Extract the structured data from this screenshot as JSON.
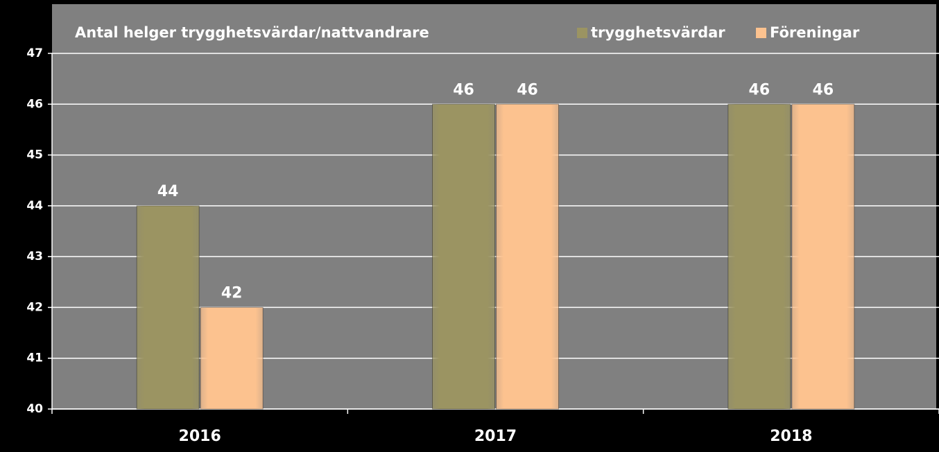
{
  "chart_data": {
    "type": "bar",
    "title": "Antal helger trygghetsvärdar/nattvandrare",
    "categories": [
      "2016",
      "2017",
      "2018"
    ],
    "series": [
      {
        "name": "trygghetsvärdar",
        "color": "#9b9462",
        "values": [
          44,
          46,
          46
        ]
      },
      {
        "name": "Föreningar",
        "color": "#fcc28f",
        "values": [
          42,
          46,
          46
        ]
      }
    ],
    "ylim": [
      40,
      47
    ],
    "yticks": [
      40,
      41,
      42,
      43,
      44,
      45,
      46,
      47
    ],
    "grid": true,
    "legend": "top-right"
  }
}
